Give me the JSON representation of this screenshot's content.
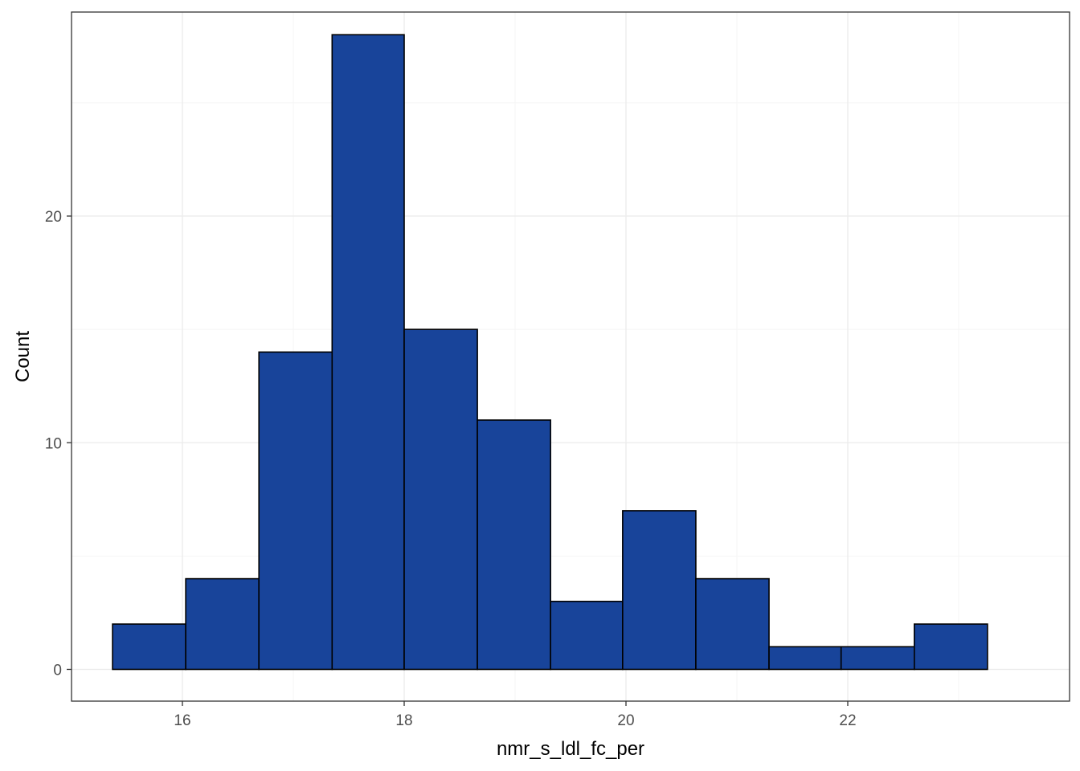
{
  "chart_data": {
    "type": "histogram",
    "xlabel": "nmr_s_ldl_fc_per",
    "ylabel": "Count",
    "xlim": [
      15.0,
      24.0
    ],
    "ylim": [
      -1.4,
      29.0
    ],
    "x_ticks": [
      {
        "value": 16,
        "label": "16"
      },
      {
        "value": 18,
        "label": "18"
      },
      {
        "value": 20,
        "label": "20"
      },
      {
        "value": 22,
        "label": "22"
      }
    ],
    "x_minor_ticks": [
      17,
      19,
      21,
      23
    ],
    "y_ticks": [
      {
        "value": 0,
        "label": "0"
      },
      {
        "value": 10,
        "label": "10"
      },
      {
        "value": 20,
        "label": "20"
      }
    ],
    "y_minor_ticks": [
      5,
      15,
      25
    ],
    "bins": [
      {
        "x0": 15.37,
        "x1": 16.03,
        "count": 2
      },
      {
        "x0": 16.03,
        "x1": 16.69,
        "count": 4
      },
      {
        "x0": 16.69,
        "x1": 17.35,
        "count": 14
      },
      {
        "x0": 17.35,
        "x1": 18.0,
        "count": 28
      },
      {
        "x0": 18.0,
        "x1": 18.66,
        "count": 15
      },
      {
        "x0": 18.66,
        "x1": 19.32,
        "count": 11
      },
      {
        "x0": 19.32,
        "x1": 19.97,
        "count": 3
      },
      {
        "x0": 19.97,
        "x1": 20.63,
        "count": 7
      },
      {
        "x0": 20.63,
        "x1": 21.29,
        "count": 4
      },
      {
        "x0": 21.29,
        "x1": 21.94,
        "count": 1
      },
      {
        "x0": 21.94,
        "x1": 22.6,
        "count": 1
      },
      {
        "x0": 22.6,
        "x1": 23.26,
        "count": 2
      }
    ],
    "grid": true,
    "legend": "none",
    "colors": {
      "bar_fill": "#18449A",
      "bar_stroke": "#000000",
      "grid_major": "#EBEBEB",
      "grid_minor": "#F5F5F5",
      "panel_border": "#333333",
      "tick_text": "#4D4D4D",
      "axis_title": "#000000"
    }
  }
}
